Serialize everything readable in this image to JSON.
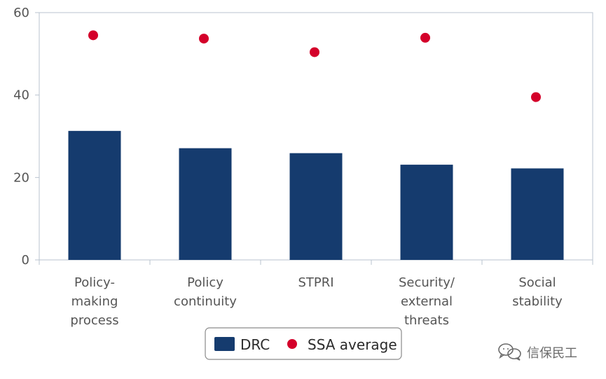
{
  "chart_data": {
    "type": "bar",
    "categories": [
      [
        "Policy-",
        "making",
        "process"
      ],
      [
        "Policy",
        "continuity"
      ],
      [
        "STPRI"
      ],
      [
        "Security/",
        "external",
        "threats"
      ],
      [
        "Social",
        "stability"
      ]
    ],
    "series": [
      {
        "name": "DRC",
        "kind": "bar",
        "color": "#153b6e",
        "values": [
          31.3,
          27.1,
          25.9,
          23.1,
          22.2
        ]
      },
      {
        "name": "SSA average",
        "kind": "scatter",
        "color": "#d4002a",
        "values": [
          54.5,
          53.7,
          50.4,
          53.9,
          39.5
        ]
      }
    ],
    "ylim": [
      0,
      60
    ],
    "yticks": [
      0,
      20,
      40,
      60
    ],
    "grid": false,
    "legend": "bottom-center"
  },
  "watermark": {
    "icon": "wechat-icon",
    "text": "信保民工"
  }
}
